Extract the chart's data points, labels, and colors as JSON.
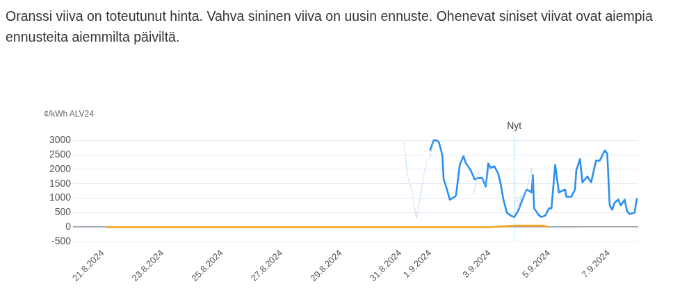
{
  "chart_data": {
    "type": "line",
    "title": "Oranssi viiva on toteutunut hinta. Vahva sininen viiva on uusin ennuste. Ohenevat siniset viivat ovat aiempia ennusteita aiemmilta päiviltä.",
    "ylabel": "¢/kWh ALV24",
    "xlim": [
      "2024-08-20T00:00",
      "2024-09-08T00:00"
    ],
    "xticks": [
      {
        "value": "2024-08-21",
        "label": "21.8.2024"
      },
      {
        "value": "2024-08-23",
        "label": "23.8.2024"
      },
      {
        "value": "2024-08-25",
        "label": "25.8.2024"
      },
      {
        "value": "2024-08-27",
        "label": "27.8.2024"
      },
      {
        "value": "2024-08-29",
        "label": "29.8.2024"
      },
      {
        "value": "2024-08-31",
        "label": "31.8.2024"
      },
      {
        "value": "2024-09-01",
        "label": "1.9.2024"
      },
      {
        "value": "2024-09-03",
        "label": "3.9.2024"
      },
      {
        "value": "2024-09-05",
        "label": "5.9.2024"
      },
      {
        "value": "2024-09-07",
        "label": "7.9.2024"
      }
    ],
    "ylim": [
      -500,
      3100
    ],
    "yticks": [
      -500,
      0,
      500,
      1000,
      1500,
      2000,
      2500,
      3000
    ],
    "grid": "y",
    "legend": false,
    "marker": "none",
    "ref_lines": [
      {
        "axis": "x",
        "value": "2024-09-03T20:00",
        "label": "Nyt",
        "color": "#7cc8ec",
        "line_style": "dotted"
      }
    ],
    "series": [
      {
        "color": "#90c4f4",
        "line_style": "dotted",
        "x": [
          "2024-08-20T00:00",
          "2024-08-21T03:00",
          "2024-08-31T00:00",
          "2024-08-31T03:00",
          "2024-08-31T06:00",
          "2024-08-31T09:00",
          "2024-08-31T13:00",
          "2024-08-31T16:00",
          "2024-08-31T21:00",
          "2024-09-01T00:00",
          "2024-09-01T03:00",
          "2024-09-02T09:00",
          "2024-09-02T11:00",
          "2024-09-02T15:00",
          "2024-09-02T18:00",
          "2024-09-02T21:00",
          "2024-09-03T00:00",
          "2024-09-03T17:00",
          "2024-09-03T20:00",
          "2024-09-03T22:00",
          "2024-09-04T00:00",
          "2024-09-04T01:00",
          "2024-09-04T03:00",
          "2024-09-04T06:00",
          "2024-09-04T10:00",
          "2024-09-04T11:00",
          "2024-09-04T12:00",
          "2024-09-05T00:00",
          "2024-09-06T00:00"
        ],
        "values": [
          0,
          0,
          null,
          2900,
          1750,
          1350,
          300,
          1000,
          2300,
          2400,
          3000,
          null,
          1150,
          1900,
          1700,
          1450,
          2050,
          null,
          750,
          1050,
          650,
          1100,
          1000,
          1300,
          2050,
          1050,
          null,
          0,
          0
        ]
      },
      {
        "color": "#f5a623",
        "line_style": "solid",
        "x": [
          "2024-08-21T03:00",
          "2024-08-23T00:00",
          "2024-08-24T12:00",
          "2024-08-26T00:00",
          "2024-08-28T00:00",
          "2024-08-29T12:00",
          "2024-08-31T00:00",
          "2024-09-01T12:00",
          "2024-09-03T00:00",
          "2024-09-03T20:00",
          "2024-09-04T08:00",
          "2024-09-04T20:00",
          "2024-09-05T00:00"
        ],
        "values": [
          0,
          0,
          0,
          0,
          0,
          0,
          0,
          0,
          0,
          50,
          50,
          50,
          0
        ]
      },
      {
        "color": "#2b8ff0",
        "line_style": "solid",
        "x": [
          "2024-09-01T00:00",
          "2024-09-01T03:00",
          "2024-09-01T05:00",
          "2024-09-01T07:00",
          "2024-09-01T09:00",
          "2024-09-01T10:00",
          "2024-09-01T11:00",
          "2024-09-01T13:00",
          "2024-09-01T16:00",
          "2024-09-01T20:00",
          "2024-09-01T21:00",
          "2024-09-02T00:00",
          "2024-09-02T03:00",
          "2024-09-02T05:00",
          "2024-09-02T06:00",
          "2024-09-02T09:00",
          "2024-09-02T12:00",
          "2024-09-02T15:00",
          "2024-09-02T18:00",
          "2024-09-02T21:00",
          "2024-09-02T23:00",
          "2024-09-03T01:00",
          "2024-09-03T04:00",
          "2024-09-03T07:00",
          "2024-09-03T09:00",
          "2024-09-03T11:00",
          "2024-09-03T14:00",
          "2024-09-03T17:00",
          "2024-09-03T20:00",
          "2024-09-03T23:00",
          "2024-09-04T03:00",
          "2024-09-04T06:00",
          "2024-09-04T10:00",
          "2024-09-04T11:00",
          "2024-09-04T12:00",
          "2024-09-04T16:00",
          "2024-09-04T18:00",
          "2024-09-04T21:00",
          "2024-09-05T00:00",
          "2024-09-05T02:00",
          "2024-09-05T05:00",
          "2024-09-05T08:00",
          "2024-09-05T13:00",
          "2024-09-05T14:00",
          "2024-09-05T18:00",
          "2024-09-05T21:00",
          "2024-09-05T22:00",
          "2024-09-06T01:00",
          "2024-09-06T03:00",
          "2024-09-06T07:00",
          "2024-09-06T10:00",
          "2024-09-06T14:00",
          "2024-09-06T17:00",
          "2024-09-06T21:00",
          "2024-09-06T23:00",
          "2024-09-07T01:00",
          "2024-09-07T03:00",
          "2024-09-07T05:00",
          "2024-09-07T08:00",
          "2024-09-07T10:00",
          "2024-09-07T13:00",
          "2024-09-07T15:00",
          "2024-09-07T17:00",
          "2024-09-07T21:00",
          "2024-09-07T23:00"
        ],
        "values": [
          2650,
          3000,
          3000,
          2950,
          2650,
          2450,
          1650,
          1400,
          950,
          1050,
          1100,
          2150,
          2450,
          2200,
          2150,
          1950,
          1650,
          1700,
          1700,
          1400,
          2200,
          2050,
          2100,
          1850,
          1500,
          1000,
          500,
          400,
          350,
          550,
          1000,
          1300,
          1200,
          1800,
          650,
          400,
          350,
          400,
          650,
          650,
          2150,
          1200,
          1300,
          1050,
          1050,
          1300,
          1950,
          2350,
          1550,
          1750,
          1550,
          2300,
          2300,
          2650,
          2550,
          750,
          600,
          850,
          950,
          750,
          950,
          550,
          450,
          500,
          1000
        ]
      }
    ]
  }
}
